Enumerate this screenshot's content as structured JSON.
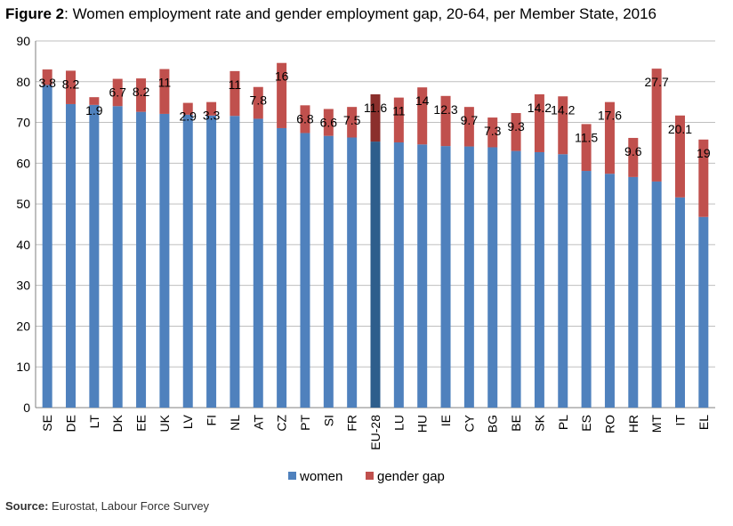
{
  "figure": {
    "label": "Figure 2",
    "title": ": Women employment rate and gender employment gap, 20-64, per Member State, 2016"
  },
  "source": {
    "label": "Source:",
    "text": " Eurostat, Labour Force Survey"
  },
  "colors": {
    "women": "#4f81bd",
    "gender_gap": "#c0504d",
    "women_highlight": "#2e5e8c",
    "gap_highlight": "#8b2f2c"
  },
  "chart_data": {
    "type": "bar",
    "stacked": true,
    "categories": [
      "SE",
      "DE",
      "LT",
      "DK",
      "EE",
      "UK",
      "LV",
      "FI",
      "NL",
      "AT",
      "CZ",
      "PT",
      "SI",
      "FR",
      "EU-28",
      "LU",
      "HU",
      "IE",
      "CY",
      "BG",
      "BE",
      "SK",
      "PL",
      "ES",
      "RO",
      "HR",
      "MT",
      "IT",
      "EL"
    ],
    "series": [
      {
        "name": "women",
        "values": [
          79.2,
          74.5,
          74.3,
          74.0,
          72.6,
          72.1,
          71.9,
          71.7,
          71.6,
          70.9,
          68.6,
          67.4,
          66.7,
          66.3,
          65.3,
          65.1,
          64.6,
          64.2,
          64.1,
          63.9,
          63.0,
          62.7,
          62.2,
          58.1,
          57.4,
          56.6,
          55.5,
          51.6,
          46.8
        ]
      },
      {
        "name": "gender gap",
        "values": [
          3.8,
          8.2,
          1.9,
          6.7,
          8.2,
          11,
          2.9,
          3.3,
          11,
          7.8,
          16,
          6.8,
          6.6,
          7.5,
          11.6,
          11,
          14,
          12.3,
          9.7,
          7.3,
          9.3,
          14.2,
          14.2,
          11.5,
          17.6,
          9.6,
          27.7,
          20.1,
          19
        ]
      }
    ],
    "data_labels": [
      "3.8",
      "8.2",
      "1.9",
      "6.7",
      "8.2",
      "11",
      "2.9",
      "3.3",
      "11",
      "7.8",
      "16",
      "6.8",
      "6.6",
      "7.5",
      "11.6",
      "11",
      "14",
      "12.3",
      "9.7",
      "7.3",
      "9.3",
      "14.2",
      "14.2",
      "11.5",
      "17.6",
      "9.6",
      "27.7",
      "20.1",
      "19"
    ],
    "highlight_category": "EU-28",
    "ylim": [
      0,
      90
    ],
    "yticks": [
      0,
      10,
      20,
      30,
      40,
      50,
      60,
      70,
      80,
      90
    ],
    "grid": "horizontal",
    "legend": {
      "position": "bottom",
      "entries": [
        "women",
        "gender gap"
      ]
    }
  }
}
